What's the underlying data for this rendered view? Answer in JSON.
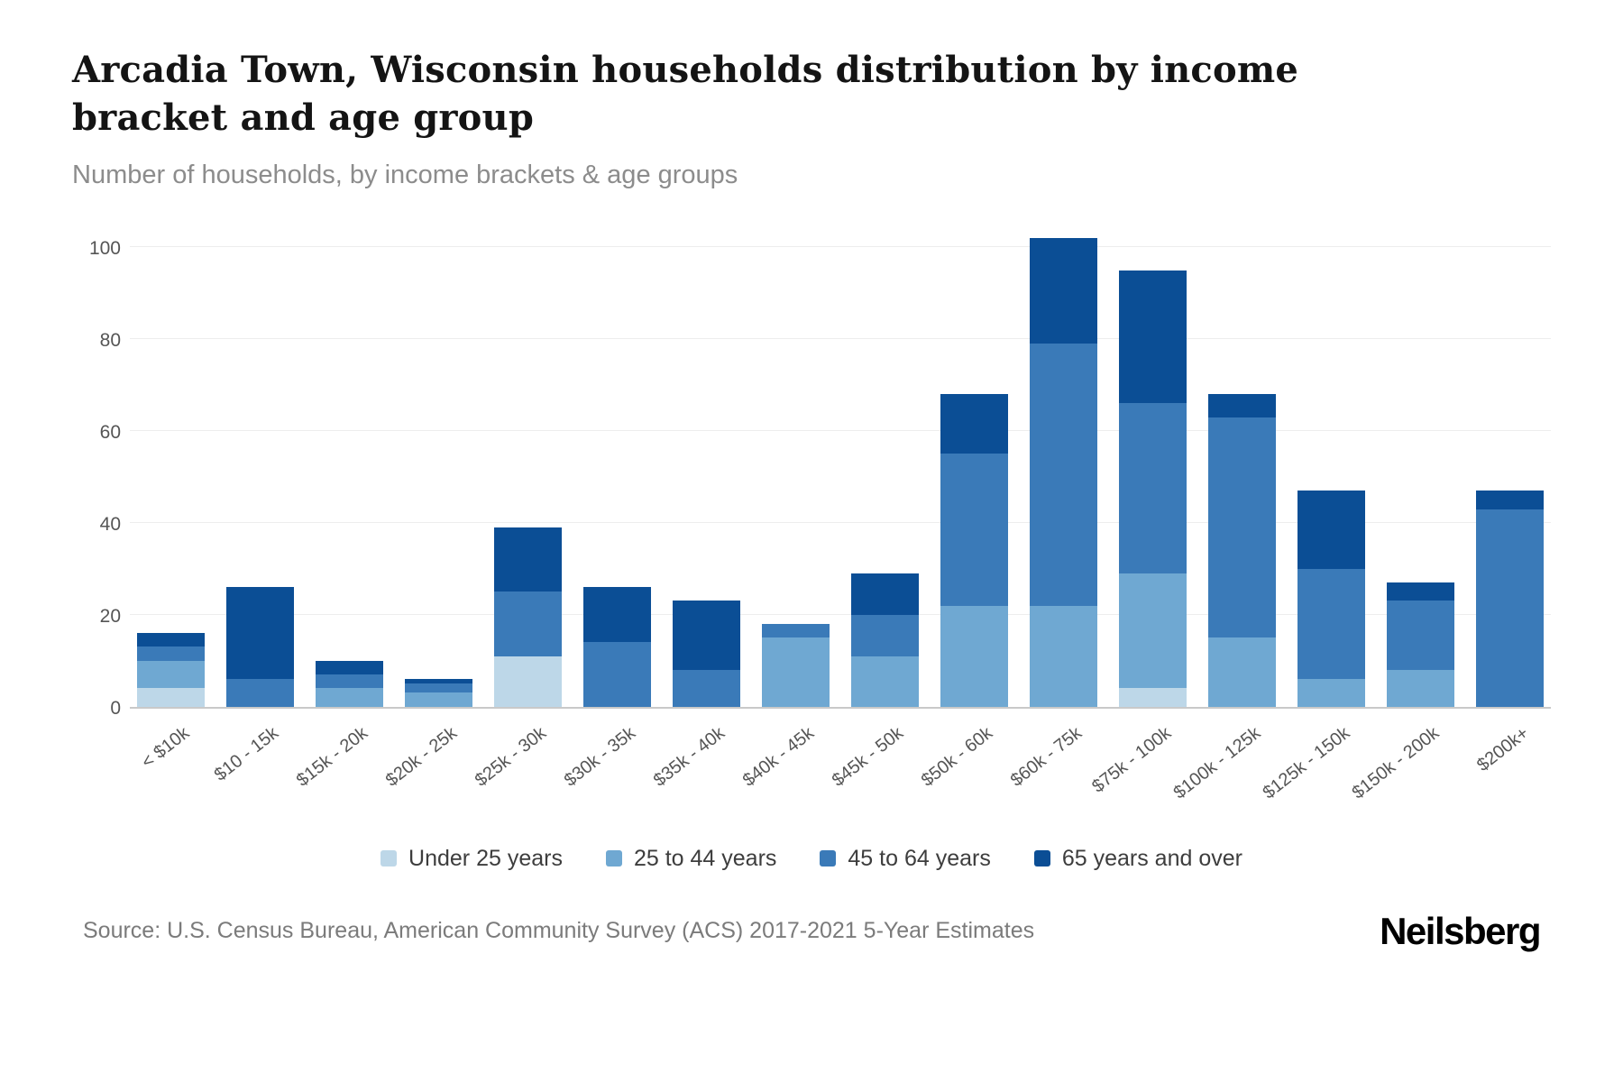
{
  "header": {
    "title": "Arcadia Town, Wisconsin households distribution by income bracket and age group",
    "subtitle": "Number of households, by income brackets & age groups"
  },
  "chart_data": {
    "type": "bar",
    "stacked": true,
    "title": "Arcadia Town, Wisconsin households distribution by income bracket and age group",
    "xlabel": "",
    "ylabel": "Number of households",
    "ylim": [
      0,
      105
    ],
    "yticks": [
      0,
      20,
      40,
      60,
      80,
      100
    ],
    "grid": true,
    "legend_position": "bottom",
    "categories": [
      "< $10k",
      "$10 - 15k",
      "$15k - 20k",
      "$20k - 25k",
      "$25k - 30k",
      "$30k - 35k",
      "$35k - 40k",
      "$40k - 45k",
      "$45k - 50k",
      "$50k - 60k",
      "$60k - 75k",
      "$75k - 100k",
      "$100k - 125k",
      "$125k - 150k",
      "$150k - 200k",
      "$200k+"
    ],
    "series": [
      {
        "name": "Under 25 years",
        "color": "#bdd7e8",
        "values": [
          4,
          0,
          0,
          0,
          11,
          0,
          0,
          0,
          0,
          0,
          0,
          4,
          0,
          0,
          0,
          0
        ]
      },
      {
        "name": "25 to 44 years",
        "color": "#6fa8d2",
        "values": [
          6,
          0,
          4,
          3,
          0,
          0,
          0,
          15,
          11,
          22,
          22,
          25,
          15,
          6,
          8,
          0
        ]
      },
      {
        "name": "45 to 64 years",
        "color": "#3a7ab8",
        "values": [
          3,
          6,
          3,
          2,
          14,
          14,
          8,
          3,
          9,
          33,
          57,
          37,
          48,
          24,
          15,
          43
        ]
      },
      {
        "name": "65 years and over",
        "color": "#0b4e95",
        "values": [
          3,
          20,
          3,
          1,
          14,
          12,
          15,
          0,
          9,
          13,
          23,
          29,
          5,
          17,
          4,
          4
        ]
      }
    ],
    "totals": [
      16,
      26,
      10,
      6,
      39,
      26,
      23,
      18,
      29,
      68,
      102,
      95,
      68,
      47,
      27,
      47
    ]
  },
  "footer": {
    "source": "Source: U.S. Census Bureau, American Community Survey (ACS) 2017-2021 5-Year Estimates",
    "brand": "Neilsberg"
  }
}
